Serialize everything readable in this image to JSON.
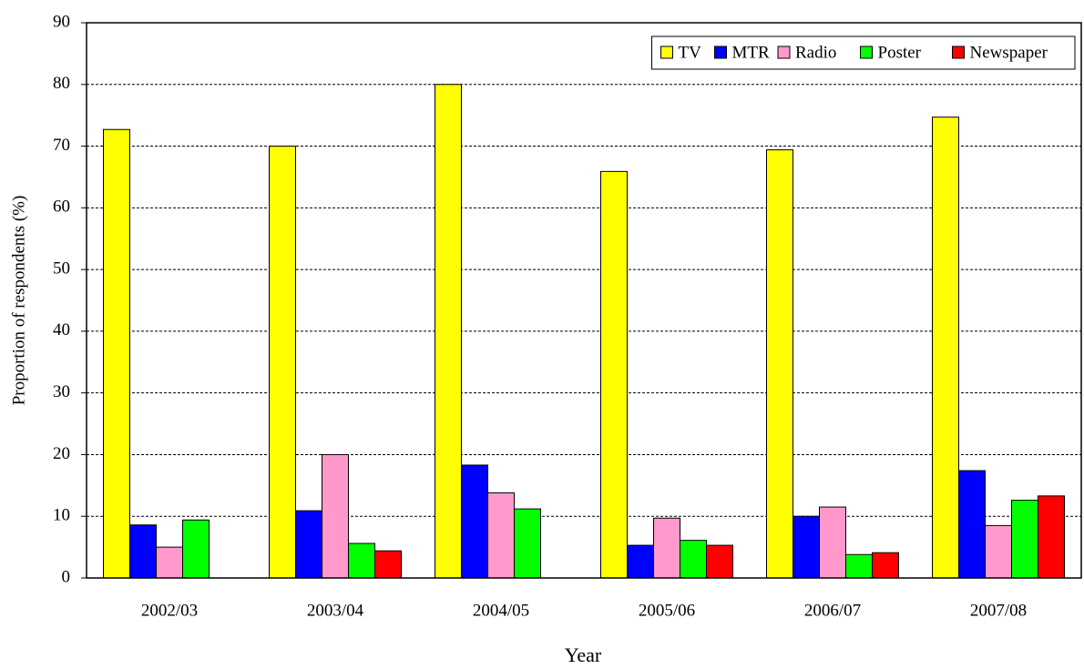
{
  "chart_data": {
    "type": "bar",
    "x_label": "Year",
    "y_label": "Proportion of respondents (%)",
    "categories": [
      "2002/03",
      "2003/04",
      "2004/05",
      "2005/06",
      "2006/07",
      "2007/08"
    ],
    "series": [
      {
        "name": "TV",
        "color": "#ffff00",
        "values": [
          72.7,
          70.0,
          80.0,
          65.9,
          69.4,
          74.7
        ]
      },
      {
        "name": "MTR",
        "color": "#0000ff",
        "values": [
          8.6,
          10.9,
          18.3,
          5.3,
          10.0,
          17.4
        ]
      },
      {
        "name": "Radio",
        "color": "#ff99cc",
        "values": [
          5.0,
          20.0,
          13.8,
          9.7,
          11.5,
          8.5
        ]
      },
      {
        "name": "Poster",
        "color": "#00ff00",
        "values": [
          9.4,
          5.6,
          11.2,
          6.1,
          3.8,
          12.6
        ]
      },
      {
        "name": "Newspaper",
        "color": "#ff0000",
        "values": [
          null,
          4.4,
          null,
          5.3,
          4.1,
          13.3
        ]
      }
    ],
    "ylim": [
      0,
      90
    ],
    "yticks": [
      0,
      10,
      20,
      30,
      40,
      50,
      60,
      70,
      80,
      90
    ],
    "grid": true,
    "legend": "upper-right"
  }
}
